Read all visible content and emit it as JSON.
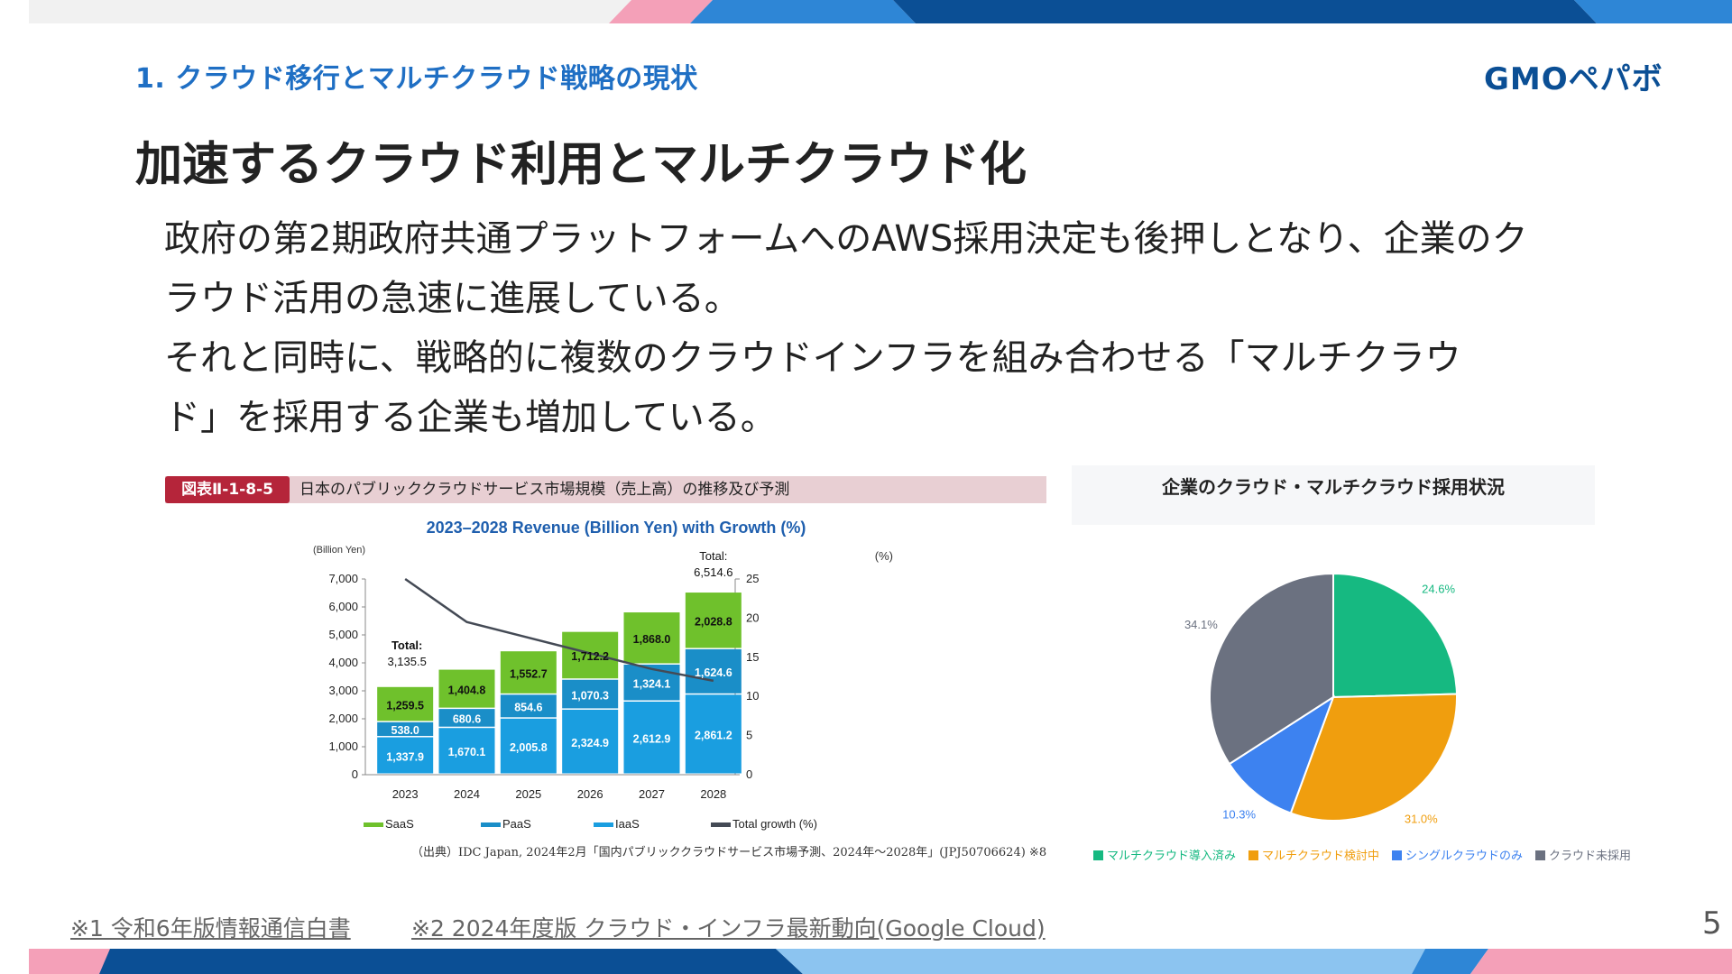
{
  "header": {
    "section_title": "1. クラウド移行とマルチクラウド戦略の現状",
    "logo_text": "GMOペパボ"
  },
  "main": {
    "title": "加速するクラウド利用とマルチクラウド化",
    "body_lines": [
      "政府の第2期政府共通プラットフォームへのAWS採用決定も後押しとなり、企業のク",
      "ラウド活用の急速に進展している。",
      "それと同時に、戦略的に複数のクラウドインフラを組み合わせる「マルチクラウ",
      "ド」を採用する企業も増加している。"
    ]
  },
  "figure": {
    "tag": "図表Ⅱ-1-8-5",
    "caption": "日本のパブリッククラウドサービス市場規模（売上高）の推移及び予測",
    "source": "（出典）IDC Japan, 2024年2月「国内パブリッククラウドサービス市場予測、2024年～2028年」(JPJ50706624) ※8"
  },
  "chart_data": [
    {
      "type": "bar",
      "stacked": true,
      "title": "2023–2028 Revenue (Billion Yen) with Growth (%)",
      "ylabel": "(Billion Yen)",
      "y2label": "(%)",
      "ylim": [
        0,
        7000
      ],
      "y2lim": [
        0,
        25
      ],
      "yticks": [
        "0",
        "1,000",
        "2,000",
        "3,000",
        "4,000",
        "5,000",
        "6,000",
        "7,000"
      ],
      "y2ticks": [
        "0",
        "5",
        "10",
        "15",
        "20",
        "25"
      ],
      "categories": [
        "2023",
        "2024",
        "2025",
        "2026",
        "2027",
        "2028"
      ],
      "series": [
        {
          "name": "IaaS",
          "color": "#1a9ee0",
          "values": [
            1337.9,
            1670.1,
            2005.8,
            2324.9,
            2612.9,
            2861.2
          ],
          "labels": [
            "1,337.9",
            "1,670.1",
            "2,005.8",
            "2,324.9",
            "2,612.9",
            "2,861.2"
          ]
        },
        {
          "name": "PaaS",
          "color": "#1a8ec8",
          "values": [
            538.0,
            680.6,
            854.6,
            1070.3,
            1324.1,
            1624.6
          ],
          "labels": [
            "538.0",
            "680.6",
            "854.6",
            "1,070.3",
            "1,324.1",
            "1,624.6"
          ]
        },
        {
          "name": "SaaS",
          "color": "#6fc12c",
          "values": [
            1259.5,
            1404.8,
            1552.7,
            1712.2,
            1868.0,
            2028.8
          ],
          "labels": [
            "1,259.5",
            "1,404.8",
            "1,552.7",
            "1,712.2",
            "1,868.0",
            "2,028.8"
          ]
        }
      ],
      "line": {
        "name": "Total growth (%)",
        "color": "#444a55",
        "values": [
          25.0,
          19.5,
          17.5,
          15.5,
          13.5,
          12.0
        ]
      },
      "annotations": [
        {
          "text": "Total:",
          "category": "2023"
        },
        {
          "text": "3,135.5",
          "category": "2023"
        },
        {
          "text": "Total:",
          "category": "2028"
        },
        {
          "text": "6,514.6",
          "category": "2028"
        }
      ],
      "legend": [
        "SaaS",
        "PaaS",
        "IaaS",
        "Total growth (%)"
      ]
    },
    {
      "type": "pie",
      "title": "企業のクラウド・マルチクラウド採用状況",
      "slices": [
        {
          "name": "マルチクラウド導入済み",
          "value": 24.6,
          "label": "24.6%",
          "color": "#16b981"
        },
        {
          "name": "マルチクラウド検討中",
          "value": 31.0,
          "label": "31.0%",
          "color": "#f09e0e"
        },
        {
          "name": "シングルクラウドのみ",
          "value": 10.3,
          "label": "10.3%",
          "color": "#3d82f0"
        },
        {
          "name": "クラウド未採用",
          "value": 34.1,
          "label": "34.1%",
          "color": "#6b7180"
        }
      ]
    }
  ],
  "footer": {
    "note1": "※1 令和6年版情報通信白書",
    "note2": "※2 2024年度版 クラウド・インフラ最新動向(Google Cloud)",
    "page_number": "5"
  },
  "colors": {
    "accent": "#1f6fc4",
    "navy": "#0b4f95",
    "pink": "#f4a0b8",
    "light_blue": "#8cc4f0"
  }
}
